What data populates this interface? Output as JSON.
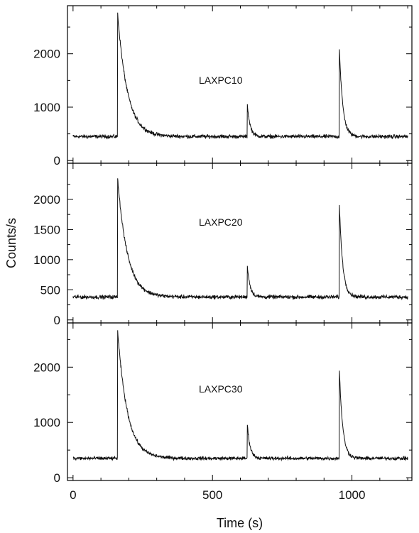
{
  "chart_data": [
    {
      "type": "line",
      "label": "LAXPC10",
      "xlabel": "Time (s)",
      "ylabel": "Counts/s",
      "xlim": [
        -20,
        1215
      ],
      "ylim": [
        -50,
        2900
      ],
      "yticks": [
        0,
        1000,
        2000
      ],
      "xticks": [
        0,
        500,
        1000
      ],
      "grid": false,
      "baseline": 450,
      "noise": 55,
      "flares": [
        {
          "t0": 160,
          "peak": 2750,
          "decay_s": 35
        },
        {
          "t0": 625,
          "peak": 1050,
          "decay_s": 10
        },
        {
          "t0": 955,
          "peak": 2100,
          "decay_s": 12
        }
      ]
    },
    {
      "type": "line",
      "label": "LAXPC20",
      "ylim": [
        -50,
        2600
      ],
      "yticks": [
        0,
        500,
        1000,
        1500,
        2000
      ],
      "xlim": [
        -20,
        1215
      ],
      "baseline": 380,
      "noise": 50,
      "flares": [
        {
          "t0": 160,
          "peak": 2350,
          "decay_s": 35
        },
        {
          "t0": 625,
          "peak": 900,
          "decay_s": 10
        },
        {
          "t0": 955,
          "peak": 1900,
          "decay_s": 12
        }
      ]
    },
    {
      "type": "line",
      "label": "LAXPC30",
      "ylim": [
        -50,
        2800
      ],
      "yticks": [
        0,
        1000,
        2000
      ],
      "xlim": [
        -20,
        1215
      ],
      "baseline": 350,
      "noise": 50,
      "flares": [
        {
          "t0": 160,
          "peak": 2650,
          "decay_s": 35
        },
        {
          "t0": 625,
          "peak": 960,
          "decay_s": 10
        },
        {
          "t0": 955,
          "peak": 1950,
          "decay_s": 12
        }
      ]
    }
  ],
  "colors": {
    "line": "#111111",
    "axis": "#000000",
    "background": "#ffffff"
  }
}
